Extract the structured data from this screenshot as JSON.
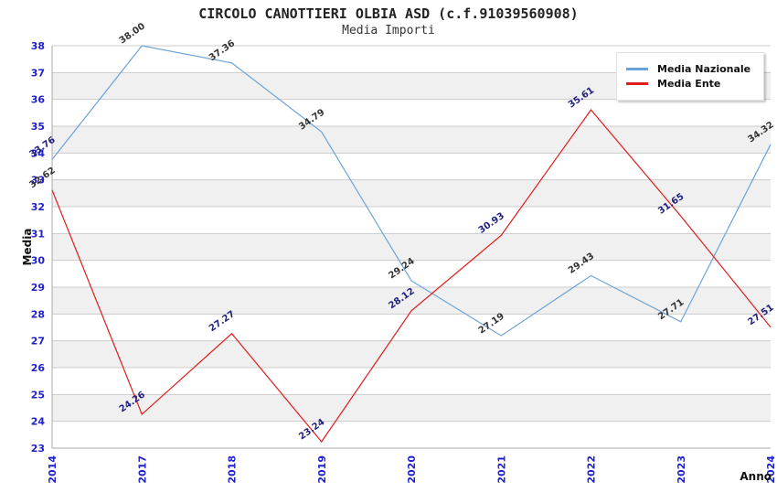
{
  "chart_data": {
    "type": "line",
    "title": "CIRCOLO CANOTTIERI OLBIA ASD (c.f.91039560908)",
    "subtitle": "Media Importi",
    "xlabel": "Anno",
    "ylabel": "Media",
    "categories": [
      "2014",
      "2017",
      "2018",
      "2019",
      "2020",
      "2021",
      "2022",
      "2023",
      "2024"
    ],
    "ylim": [
      23,
      38
    ],
    "yticks": [
      23,
      24,
      25,
      26,
      27,
      28,
      29,
      30,
      31,
      32,
      33,
      34,
      35,
      36,
      37,
      38
    ],
    "grid": true,
    "legend_position": "top-right",
    "series": [
      {
        "name": "Media Nazionale",
        "color": "#6ba3d9",
        "label_color": "#333333",
        "label_colors": [
          "#202080",
          "#333333",
          "#333333",
          "#333333",
          "#333333",
          "#333333",
          "#333333",
          "#333333",
          "#333333"
        ],
        "values": [
          33.76,
          38.0,
          37.36,
          34.79,
          29.24,
          27.19,
          29.43,
          27.71,
          34.32
        ]
      },
      {
        "name": "Media Ente",
        "color": "#e01b1b",
        "label_color": "#202080",
        "label_colors": [
          "#333333",
          "#202080",
          "#202080",
          "#202080",
          "#202080",
          "#202080",
          "#202080",
          "#202080",
          "#202080"
        ],
        "values": [
          32.62,
          24.26,
          27.27,
          23.24,
          28.12,
          30.93,
          35.61,
          31.65,
          27.51
        ]
      }
    ],
    "styles": {
      "axis_label_color": "#2020cc",
      "grid_color": "#cccccc",
      "band_color": "#f0f0f0",
      "axis_color": "#aaaaaa"
    }
  }
}
